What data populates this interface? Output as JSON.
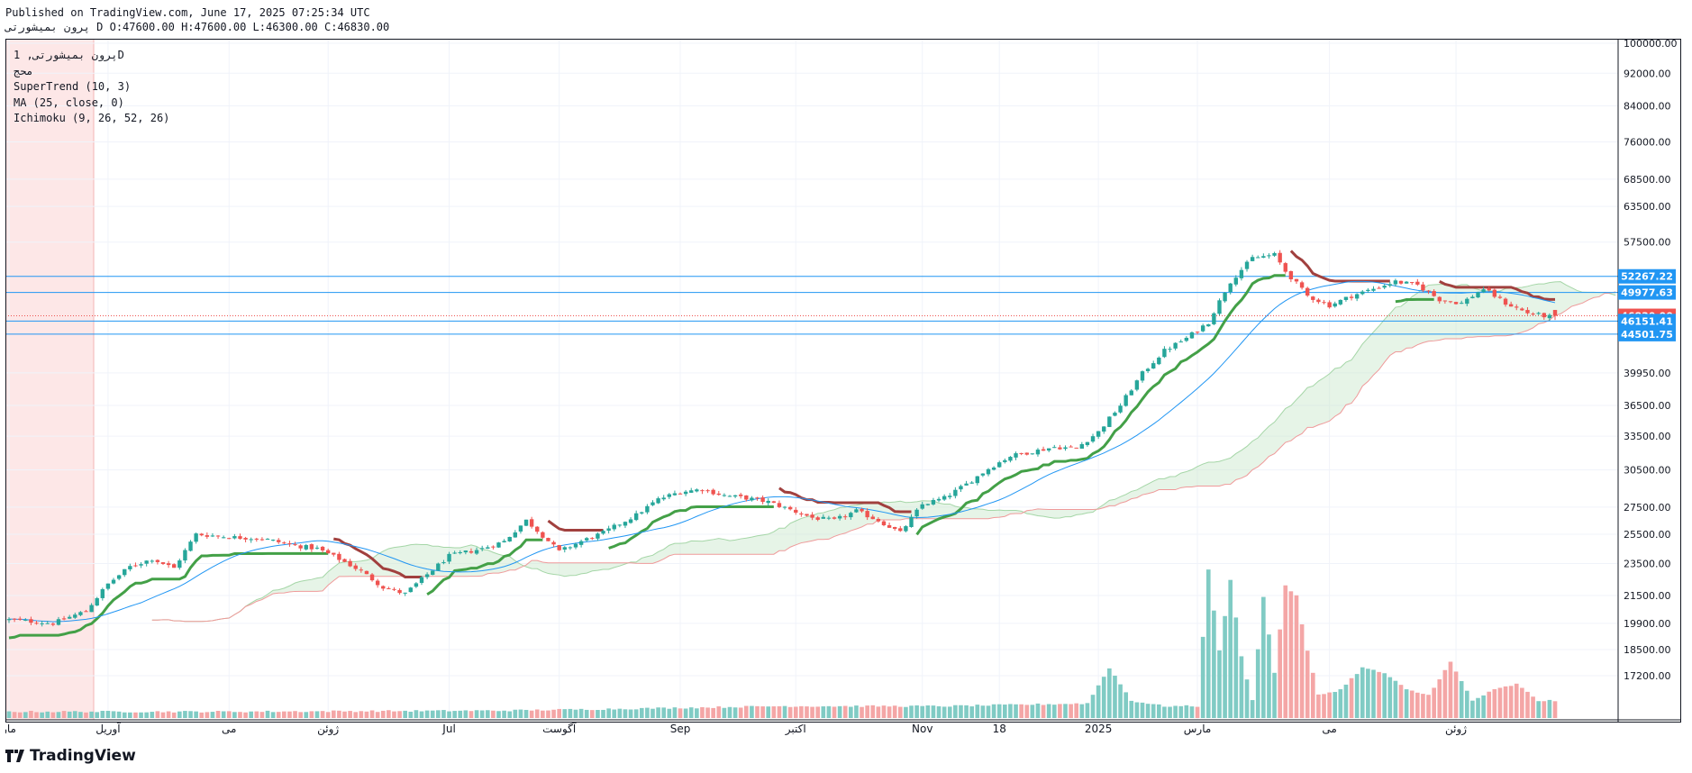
{
  "header": {
    "published": "Published on TradingView.com, June 17, 2025 07:25:34 UTC",
    "ohlc": "پرون بمیشورتی D O:47600.00 H:47600.00 L:46300.00 C:46830.00"
  },
  "legend": {
    "symbol": "پرون بمیشورتی, 1D",
    "exchange": "محج",
    "supertrend": "SuperTrend (10, 3)",
    "ma": "MA (25, close, 0)",
    "ichimoku": "Ichimoku (9, 26, 52, 26)"
  },
  "footer": {
    "brand": "TradingView"
  },
  "colors": {
    "up": "#26a69a",
    "down": "#ef5350",
    "supertrend_up": "#43a047",
    "supertrend_down": "#a1403e",
    "ma": "#2196f3",
    "level_line": "#2196f3",
    "cloud": "#c8e6c9",
    "lagging": "#ef9a9a"
  },
  "chart_data": {
    "type": "candlestick",
    "scale": "log",
    "y_ticks": [
      "100000.00",
      "92000.00",
      "84000.00",
      "76000.00",
      "68500.00",
      "63500.00",
      "57500.00",
      "39950.00",
      "36500.00",
      "33500.00",
      "30500.00",
      "27500.00",
      "25500.00",
      "23500.00",
      "21500.00",
      "19900.00",
      "18500.00",
      "17200.00"
    ],
    "x_ticks": [
      {
        "label": "مار",
        "x": 0
      },
      {
        "label": "آوريل",
        "x": 18
      },
      {
        "label": "می",
        "x": 40
      },
      {
        "label": "ژوئن",
        "x": 58
      },
      {
        "label": "Jul",
        "x": 80
      },
      {
        "label": "آگوست",
        "x": 100
      },
      {
        "label": "Sep",
        "x": 122
      },
      {
        "label": "اكتبر",
        "x": 143
      },
      {
        "label": "Nov",
        "x": 166
      },
      {
        "label": "18",
        "x": 180
      },
      {
        "label": "2025",
        "x": 198
      },
      {
        "label": "مارس",
        "x": 216
      },
      {
        "label": "می",
        "x": 240
      },
      {
        "label": "ژوئن",
        "x": 263
      }
    ],
    "price_labels": [
      {
        "value": "52267.22",
        "price": 52267.22,
        "color": "#2196f3"
      },
      {
        "value": "49977.63",
        "price": 49977.63,
        "color": "#2196f3"
      },
      {
        "value": "46830.00",
        "price": 46830,
        "color": "#ef5350"
      },
      {
        "value": "46151.41",
        "price": 46151.41,
        "color": "#2196f3"
      },
      {
        "value": "44501.75",
        "price": 44501.75,
        "color": "#2196f3"
      }
    ],
    "horizontal_levels": [
      52267.22,
      49977.63,
      46151.41,
      44501.75
    ],
    "last_price": 46830,
    "price_anchors": [
      [
        0,
        20100
      ],
      [
        8,
        19900
      ],
      [
        14,
        20600
      ],
      [
        18,
        22200
      ],
      [
        22,
        23300
      ],
      [
        26,
        23800
      ],
      [
        30,
        23200
      ],
      [
        34,
        25500
      ],
      [
        40,
        25300
      ],
      [
        46,
        25200
      ],
      [
        52,
        24700
      ],
      [
        56,
        24500
      ],
      [
        60,
        23800
      ],
      [
        64,
        23000
      ],
      [
        68,
        22000
      ],
      [
        72,
        21600
      ],
      [
        76,
        22800
      ],
      [
        80,
        24000
      ],
      [
        86,
        24500
      ],
      [
        90,
        25000
      ],
      [
        94,
        26500
      ],
      [
        100,
        24300
      ],
      [
        104,
        25000
      ],
      [
        108,
        25600
      ],
      [
        114,
        26900
      ],
      [
        118,
        28100
      ],
      [
        122,
        28700
      ],
      [
        126,
        28900
      ],
      [
        130,
        28400
      ],
      [
        134,
        28200
      ],
      [
        138,
        27900
      ],
      [
        142,
        27300
      ],
      [
        146,
        26700
      ],
      [
        150,
        26500
      ],
      [
        154,
        27200
      ],
      [
        158,
        26500
      ],
      [
        162,
        25600
      ],
      [
        166,
        27700
      ],
      [
        170,
        28200
      ],
      [
        174,
        29300
      ],
      [
        178,
        30600
      ],
      [
        182,
        31700
      ],
      [
        186,
        32100
      ],
      [
        190,
        32500
      ],
      [
        194,
        32400
      ],
      [
        198,
        33900
      ],
      [
        202,
        36500
      ],
      [
        206,
        39900
      ],
      [
        210,
        42500
      ],
      [
        214,
        44000
      ],
      [
        218,
        46000
      ],
      [
        222,
        51500
      ],
      [
        226,
        55000
      ],
      [
        230,
        55500
      ],
      [
        232,
        53000
      ],
      [
        236,
        49500
      ],
      [
        240,
        48200
      ],
      [
        244,
        49500
      ],
      [
        248,
        50500
      ],
      [
        252,
        51500
      ],
      [
        256,
        51000
      ],
      [
        260,
        49000
      ],
      [
        264,
        48500
      ],
      [
        268,
        50500
      ],
      [
        272,
        48500
      ],
      [
        276,
        47200
      ],
      [
        280,
        46700
      ]
    ],
    "volume_anchors": [
      [
        0,
        1
      ],
      [
        40,
        1
      ],
      [
        90,
        1.2
      ],
      [
        110,
        1.5
      ],
      [
        140,
        2
      ],
      [
        170,
        2
      ],
      [
        196,
        2.5
      ],
      [
        200,
        9
      ],
      [
        204,
        3
      ],
      [
        210,
        2
      ],
      [
        216,
        2
      ],
      [
        218,
        27
      ],
      [
        220,
        12
      ],
      [
        222,
        25
      ],
      [
        224,
        11
      ],
      [
        226,
        3
      ],
      [
        228,
        22
      ],
      [
        230,
        8
      ],
      [
        232,
        24
      ],
      [
        234,
        22
      ],
      [
        236,
        12
      ],
      [
        238,
        4
      ],
      [
        242,
        5
      ],
      [
        246,
        9
      ],
      [
        250,
        8
      ],
      [
        254,
        5
      ],
      [
        258,
        4
      ],
      [
        262,
        10
      ],
      [
        266,
        3
      ],
      [
        270,
        5
      ],
      [
        274,
        6
      ],
      [
        278,
        3
      ],
      [
        281,
        3
      ]
    ]
  }
}
